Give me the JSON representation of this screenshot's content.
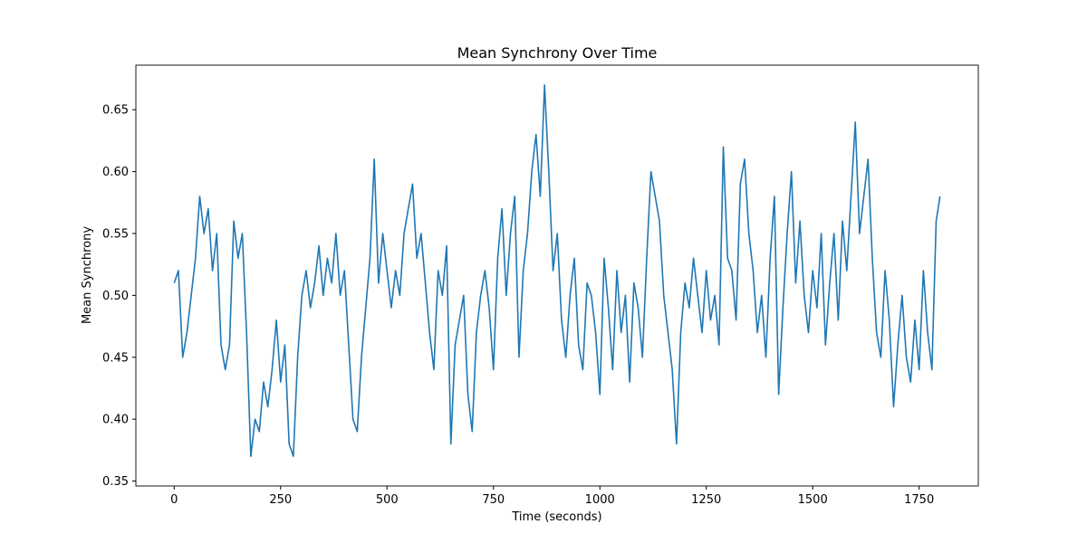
{
  "chart_data": {
    "type": "line",
    "title": "Mean Synchrony Over Time",
    "xlabel": "Time (seconds)",
    "ylabel": "Mean Synchrony",
    "x": [
      0,
      10,
      20,
      30,
      40,
      50,
      60,
      70,
      80,
      90,
      100,
      110,
      120,
      130,
      140,
      150,
      160,
      170,
      180,
      190,
      200,
      210,
      220,
      230,
      240,
      250,
      260,
      270,
      280,
      290,
      300,
      310,
      320,
      330,
      340,
      350,
      360,
      370,
      380,
      390,
      400,
      410,
      420,
      430,
      440,
      450,
      460,
      470,
      480,
      490,
      500,
      510,
      520,
      530,
      540,
      550,
      560,
      570,
      580,
      590,
      600,
      610,
      620,
      630,
      640,
      650,
      660,
      670,
      680,
      690,
      700,
      710,
      720,
      730,
      740,
      750,
      760,
      770,
      780,
      790,
      800,
      810,
      820,
      830,
      840,
      850,
      860,
      870,
      880,
      890,
      900,
      910,
      920,
      930,
      940,
      950,
      960,
      970,
      980,
      990,
      1000,
      1010,
      1020,
      1030,
      1040,
      1050,
      1060,
      1070,
      1080,
      1090,
      1100,
      1110,
      1120,
      1130,
      1140,
      1150,
      1160,
      1170,
      1180,
      1190,
      1200,
      1210,
      1220,
      1230,
      1240,
      1250,
      1260,
      1270,
      1280,
      1290,
      1300,
      1310,
      1320,
      1330,
      1340,
      1350,
      1360,
      1370,
      1380,
      1390,
      1400,
      1410,
      1420,
      1430,
      1440,
      1450,
      1460,
      1470,
      1480,
      1490,
      1500,
      1510,
      1520,
      1530,
      1540,
      1550,
      1560,
      1570,
      1580,
      1590,
      1600,
      1610,
      1620,
      1630,
      1640,
      1650,
      1660,
      1670,
      1680,
      1690,
      1700,
      1710,
      1720,
      1730,
      1740,
      1750,
      1760,
      1770,
      1780,
      1790,
      1799
    ],
    "series": [
      {
        "name": "Mean Synchrony",
        "color": "#1f77b4",
        "values": [
          0.51,
          0.52,
          0.45,
          0.47,
          0.5,
          0.53,
          0.58,
          0.55,
          0.57,
          0.52,
          0.55,
          0.46,
          0.44,
          0.46,
          0.56,
          0.53,
          0.55,
          0.47,
          0.37,
          0.4,
          0.39,
          0.43,
          0.41,
          0.44,
          0.48,
          0.43,
          0.46,
          0.38,
          0.37,
          0.45,
          0.5,
          0.52,
          0.49,
          0.51,
          0.54,
          0.5,
          0.53,
          0.51,
          0.55,
          0.5,
          0.52,
          0.46,
          0.4,
          0.39,
          0.45,
          0.49,
          0.53,
          0.61,
          0.51,
          0.55,
          0.52,
          0.49,
          0.52,
          0.5,
          0.55,
          0.57,
          0.59,
          0.53,
          0.55,
          0.51,
          0.47,
          0.44,
          0.52,
          0.5,
          0.54,
          0.38,
          0.46,
          0.48,
          0.5,
          0.42,
          0.39,
          0.47,
          0.5,
          0.52,
          0.49,
          0.44,
          0.53,
          0.57,
          0.5,
          0.55,
          0.58,
          0.45,
          0.52,
          0.55,
          0.6,
          0.63,
          0.58,
          0.67,
          0.6,
          0.52,
          0.55,
          0.48,
          0.45,
          0.5,
          0.53,
          0.46,
          0.44,
          0.51,
          0.5,
          0.47,
          0.42,
          0.53,
          0.49,
          0.44,
          0.52,
          0.47,
          0.5,
          0.43,
          0.51,
          0.49,
          0.45,
          0.53,
          0.6,
          0.58,
          0.56,
          0.5,
          0.47,
          0.44,
          0.38,
          0.47,
          0.51,
          0.49,
          0.53,
          0.5,
          0.47,
          0.52,
          0.48,
          0.5,
          0.46,
          0.62,
          0.53,
          0.52,
          0.48,
          0.59,
          0.61,
          0.55,
          0.52,
          0.47,
          0.5,
          0.45,
          0.53,
          0.58,
          0.42,
          0.49,
          0.55,
          0.6,
          0.51,
          0.56,
          0.5,
          0.47,
          0.52,
          0.49,
          0.55,
          0.46,
          0.51,
          0.55,
          0.48,
          0.56,
          0.52,
          0.58,
          0.64,
          0.55,
          0.58,
          0.61,
          0.53,
          0.47,
          0.45,
          0.52,
          0.48,
          0.41,
          0.46,
          0.5,
          0.45,
          0.43,
          0.48,
          0.44,
          0.52,
          0.47,
          0.44,
          0.56,
          0.58
        ]
      }
    ],
    "xlim": [
      -90,
      1889
    ],
    "ylim": [
      0.346,
      0.686
    ],
    "xticks": [
      0,
      250,
      500,
      750,
      1000,
      1250,
      1500,
      1750
    ],
    "yticks": [
      0.35,
      {
        "value": 0.4,
        "label": "0.40"
      },
      0.45,
      {
        "value": 0.5,
        "label": "0.50"
      },
      0.55,
      {
        "value": 0.6,
        "label": "0.60"
      },
      0.65
    ],
    "grid": false
  }
}
